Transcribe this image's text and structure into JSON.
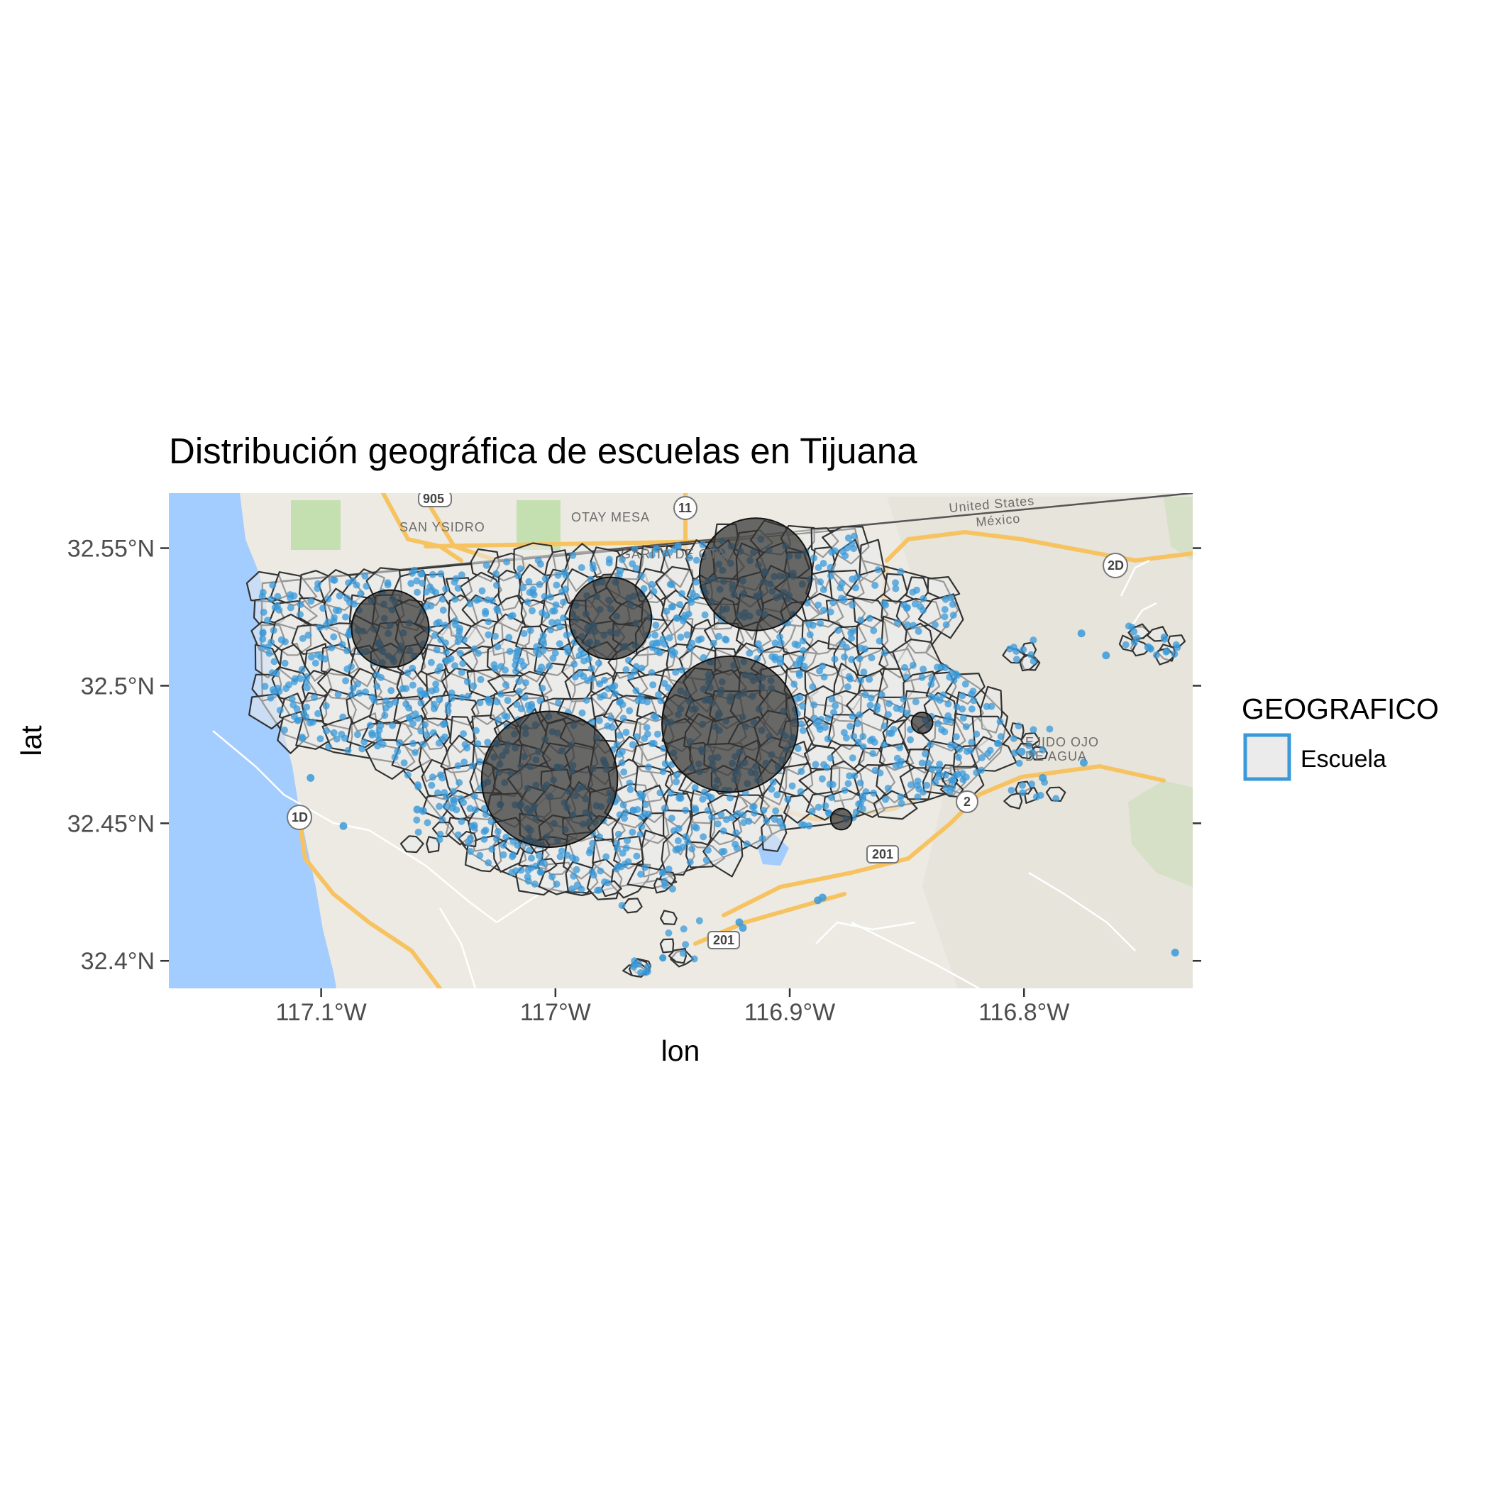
{
  "chart_data": {
    "type": "scatter",
    "title": "Distribución geográfica de escuelas en Tijuana",
    "xlabel": "lon",
    "ylabel": "lat",
    "xlim": [
      -117.165,
      -116.728
    ],
    "ylim": [
      32.39,
      32.57
    ],
    "x_ticks": [
      {
        "value": -117.1,
        "label": "117.1°W"
      },
      {
        "value": -117.0,
        "label": "117°W"
      },
      {
        "value": -116.9,
        "label": "116.9°W"
      },
      {
        "value": -116.8,
        "label": "116.8°W"
      }
    ],
    "y_ticks": [
      {
        "value": 32.4,
        "label": "32.4°N"
      },
      {
        "value": 32.45,
        "label": "32.45°N"
      },
      {
        "value": 32.5,
        "label": "32.5°N"
      },
      {
        "value": 32.55,
        "label": "32.55°N"
      }
    ],
    "legend": {
      "title": "GEOGRAFICO",
      "placement": "right",
      "entries": [
        {
          "label": "Escuela",
          "fill": "#ebebeb",
          "stroke": "#3a9ad9"
        }
      ]
    },
    "colors": {
      "points": "#3a9ad9",
      "circles": "#333333",
      "boundaries": "#333333",
      "water": "#a3ccff",
      "land": "#eceae3"
    },
    "concentration_circles": [
      {
        "lon": -117.0705,
        "lat": 32.5207,
        "r_deg_lon": 0.0165
      },
      {
        "lon": -116.9765,
        "lat": 32.5245,
        "r_deg_lon": 0.0175
      },
      {
        "lon": -116.9145,
        "lat": 32.5405,
        "r_deg_lon": 0.024
      },
      {
        "lon": -116.9255,
        "lat": 32.486,
        "r_deg_lon": 0.029
      },
      {
        "lon": -117.0025,
        "lat": 32.466,
        "r_deg_lon": 0.029
      },
      {
        "lon": -116.8435,
        "lat": 32.4865,
        "r_deg_lon": 0.0045
      },
      {
        "lon": -116.878,
        "lat": 32.4515,
        "r_deg_lon": 0.0045
      }
    ],
    "outlier_points": [
      {
        "lon": -117.1045,
        "lat": 32.4665
      },
      {
        "lon": -117.0905,
        "lat": 32.449
      },
      {
        "lon": -117.059,
        "lat": 32.455
      },
      {
        "lon": -117.0565,
        "lat": 32.4545
      },
      {
        "lon": -116.9215,
        "lat": 32.414
      },
      {
        "lon": -116.92,
        "lat": 32.412
      },
      {
        "lon": -116.886,
        "lat": 32.423
      },
      {
        "lon": -116.888,
        "lat": 32.422
      },
      {
        "lon": -116.801,
        "lat": 32.476
      },
      {
        "lon": -116.7965,
        "lat": 32.4755
      },
      {
        "lon": -116.792,
        "lat": 32.4665
      },
      {
        "lon": -116.7745,
        "lat": 32.472
      },
      {
        "lon": -116.7755,
        "lat": 32.519
      },
      {
        "lon": -116.7355,
        "lat": 32.403
      },
      {
        "lon": -116.747,
        "lat": 32.514
      },
      {
        "lon": -116.765,
        "lat": 32.511
      }
    ],
    "base_map_labels": [
      {
        "text": "SAN YSIDRO"
      },
      {
        "text": "OTAY MESA"
      },
      {
        "text": "GARITA DE OTAY"
      },
      {
        "text": "United States"
      },
      {
        "text": "México"
      },
      {
        "text": "EJIDO OJO"
      },
      {
        "text": "DE AGUA"
      }
    ],
    "road_shields": [
      "905",
      "11",
      "2D",
      "1D",
      "201",
      "201",
      "2"
    ]
  }
}
